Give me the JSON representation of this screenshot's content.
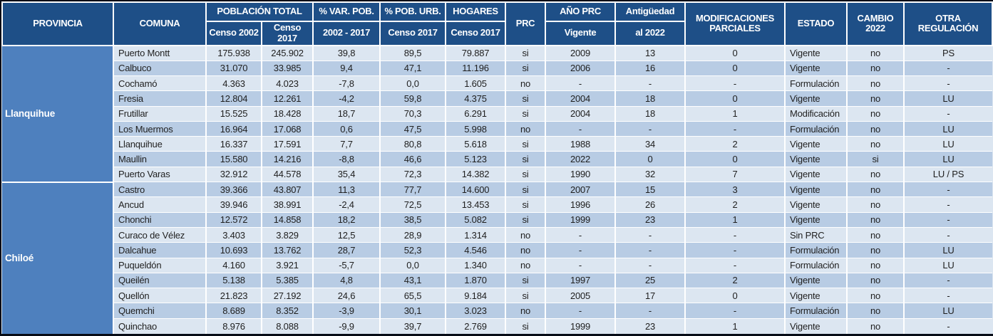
{
  "table": {
    "headers": {
      "provincia": "PROVINCIA",
      "comuna": "COMUNA",
      "poblacion_total": "POBLACIÓN TOTAL",
      "var_pob": "% VAR. POB.",
      "pob_urb": "% POB. URB.",
      "hogares": "HOGARES",
      "prc": "PRC",
      "ano_prc": "AÑO PRC",
      "antiguedad": "Antigüedad",
      "modificaciones": "MODIFICACIONES PARCIALES",
      "estado": "ESTADO",
      "cambio": "CAMBIO 2022",
      "otra_regulacion": "OTRA REGULACIÓN",
      "sub": {
        "censo_2002": "Censo 2002",
        "censo_2017_total": "Censo 2017",
        "periodo": "2002 - 2017",
        "censo_2017_urb": "Censo 2017",
        "censo_2017_hogares": "Censo 2017",
        "vigente": "Vigente",
        "al_2022": "al 2022"
      }
    },
    "groups": [
      {
        "provincia": "Llanquihue",
        "rows": [
          [
            "Puerto Montt",
            "175.938",
            "245.902",
            "39,8",
            "89,5",
            "79.887",
            "si",
            "2009",
            "13",
            "0",
            "Vigente",
            "no",
            "PS"
          ],
          [
            "Calbuco",
            "31.070",
            "33.985",
            "9,4",
            "47,1",
            "11.196",
            "si",
            "2006",
            "16",
            "0",
            "Vigente",
            "no",
            "-"
          ],
          [
            "Cochamó",
            "4.363",
            "4.023",
            "-7,8",
            "0,0",
            "1.605",
            "no",
            "-",
            "-",
            "-",
            "Formulación",
            "no",
            "-"
          ],
          [
            "Fresia",
            "12.804",
            "12.261",
            "-4,2",
            "59,8",
            "4.375",
            "si",
            "2004",
            "18",
            "0",
            "Vigente",
            "no",
            "LU"
          ],
          [
            "Frutillar",
            "15.525",
            "18.428",
            "18,7",
            "70,3",
            "6.291",
            "si",
            "2004",
            "18",
            "1",
            "Modificación",
            "no",
            "-"
          ],
          [
            "Los Muermos",
            "16.964",
            "17.068",
            "0,6",
            "47,5",
            "5.998",
            "no",
            "-",
            "-",
            "-",
            "Formulación",
            "no",
            "LU"
          ],
          [
            "Llanquihue",
            "16.337",
            "17.591",
            "7,7",
            "80,8",
            "5.618",
            "si",
            "1988",
            "34",
            "2",
            "Vigente",
            "no",
            "LU"
          ],
          [
            "Maullin",
            "15.580",
            "14.216",
            "-8,8",
            "46,6",
            "5.123",
            "si",
            "2022",
            "0",
            "0",
            "Vigente",
            "si",
            "LU"
          ],
          [
            "Puerto Varas",
            "32.912",
            "44.578",
            "35,4",
            "72,3",
            "14.382",
            "si",
            "1990",
            "32",
            "7",
            "Vigente",
            "no",
            "LU / PS"
          ]
        ]
      },
      {
        "provincia": "Chiloé",
        "rows": [
          [
            "Castro",
            "39.366",
            "43.807",
            "11,3",
            "77,7",
            "14.600",
            "si",
            "2007",
            "15",
            "3",
            "Vigente",
            "no",
            "-"
          ],
          [
            "Ancud",
            "39.946",
            "38.991",
            "-2,4",
            "72,5",
            "13.453",
            "si",
            "1996",
            "26",
            "2",
            "Vigente",
            "no",
            "-"
          ],
          [
            "Chonchi",
            "12.572",
            "14.858",
            "18,2",
            "38,5",
            "5.082",
            "si",
            "1999",
            "23",
            "1",
            "Vigente",
            "no",
            "-"
          ],
          [
            "Curaco de Vélez",
            "3.403",
            "3.829",
            "12,5",
            "28,9",
            "1.314",
            "no",
            "-",
            "-",
            "-",
            "Sin PRC",
            "no",
            "-"
          ],
          [
            "Dalcahue",
            "10.693",
            "13.762",
            "28,7",
            "52,3",
            "4.546",
            "no",
            "-",
            "-",
            "-",
            "Formulación",
            "no",
            "LU"
          ],
          [
            "Puqueldón",
            "4.160",
            "3.921",
            "-5,7",
            "0,0",
            "1.340",
            "no",
            "-",
            "-",
            "-",
            "Formulación",
            "no",
            "LU"
          ],
          [
            "Queilén",
            "5.138",
            "5.385",
            "4,8",
            "43,1",
            "1.870",
            "si",
            "1997",
            "25",
            "2",
            "Vigente",
            "no",
            "-"
          ],
          [
            "Quellón",
            "21.823",
            "27.192",
            "24,6",
            "65,5",
            "9.184",
            "si",
            "2005",
            "17",
            "0",
            "Vigente",
            "no",
            "-"
          ],
          [
            "Quemchi",
            "8.689",
            "8.352",
            "-3,9",
            "30,1",
            "3.023",
            "no",
            "-",
            "-",
            "-",
            "Formulación",
            "no",
            "LU"
          ],
          [
            "Quinchao",
            "8.976",
            "8.088",
            "-9,9",
            "39,7",
            "2.769",
            "si",
            "1999",
            "23",
            "1",
            "Vigente",
            "no",
            "-"
          ]
        ]
      }
    ],
    "colors": {
      "header_bg": "#1E4F87",
      "province_bg": "#4E80BE",
      "row_light": "#DCE6F1",
      "row_dark": "#B8CCE4",
      "frame": "#070C16",
      "grid": "#FFFFFF",
      "header_text": "#FFFFFF",
      "body_text": "#1F1F1F"
    }
  }
}
